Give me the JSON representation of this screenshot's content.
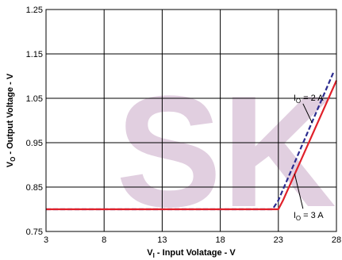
{
  "chart_data": {
    "type": "line",
    "title": "",
    "xlabel_main": "V",
    "xlabel_sub": "I",
    "xlabel_rest": " - Input Volatage - V",
    "ylabel_main": "V",
    "ylabel_sub": "O",
    "ylabel_rest": " - Output Voltage - V",
    "xlim": [
      3,
      28
    ],
    "ylim": [
      0.75,
      1.25
    ],
    "x_ticks": [
      3,
      8,
      13,
      18,
      23,
      28
    ],
    "x_tick_labels": [
      "3",
      "8",
      "13",
      "18",
      "23",
      "28"
    ],
    "y_ticks": [
      0.75,
      0.85,
      0.95,
      1.05,
      1.15,
      1.25
    ],
    "y_tick_labels": [
      "0.75",
      "0.85",
      "0.95",
      "1.05",
      "1.15",
      "1.25"
    ],
    "grid": true,
    "watermark": "SK",
    "series": [
      {
        "label_main": "I",
        "label_sub": "O",
        "label_rest": " = 2 A",
        "color": "#2b2b8f",
        "style": "dashed",
        "x": [
          3,
          22.5,
          23.0,
          27.8
        ],
        "y": [
          0.8,
          0.8,
          0.82,
          1.112
        ]
      },
      {
        "label_main": "I",
        "label_sub": "O",
        "label_rest": " = 3 A",
        "color": "#e0202a",
        "style": "solid",
        "x": [
          3,
          23.0,
          23.4,
          28.0
        ],
        "y": [
          0.8,
          0.8,
          0.82,
          1.09
        ]
      }
    ],
    "annotations": [
      {
        "series": 0,
        "text_x": 24.3,
        "text_y": 1.045,
        "arrow_x": 25.9,
        "arrow_y": 0.995
      },
      {
        "series": 1,
        "text_x": 24.3,
        "text_y": 0.78,
        "arrow_x": 24.4,
        "arrow_y": 0.88
      }
    ]
  }
}
